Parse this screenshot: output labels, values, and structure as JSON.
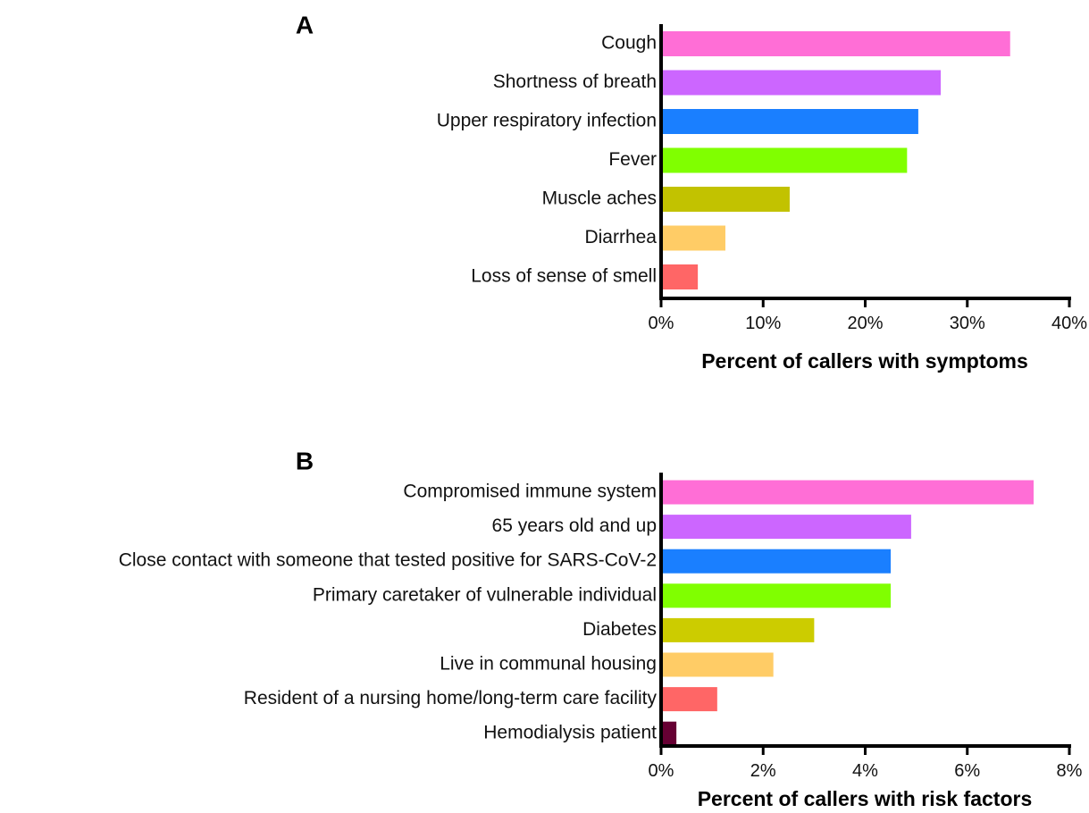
{
  "chart_data": [
    {
      "type": "bar",
      "orientation": "horizontal",
      "panel_label": "A",
      "xlabel": "Percent of callers with symptoms",
      "ylabel": "",
      "categories": [
        "Cough",
        "Shortness of breath",
        "Upper respiratory infection",
        "Fever",
        "Muscle aches",
        "Diarrhea",
        "Loss of sense of smell"
      ],
      "values": [
        34.2,
        27.4,
        25.2,
        24.1,
        12.6,
        6.3,
        3.6
      ],
      "xlim": [
        0,
        40
      ],
      "xticks": [
        0,
        10,
        20,
        30,
        40
      ],
      "xtick_labels": [
        "0%",
        "10%",
        "20%",
        "30%",
        "40%"
      ],
      "colors": [
        "#ff6ed6",
        "#cc66ff",
        "#1a7fff",
        "#80ff00",
        "#c2c200",
        "#ffcc66",
        "#ff6666"
      ],
      "grid": false
    },
    {
      "type": "bar",
      "orientation": "horizontal",
      "panel_label": "B",
      "xlabel": "Percent of callers with risk factors",
      "ylabel": "",
      "categories": [
        "Compromised immune system",
        "65 years old and up",
        "Close contact with someone that tested positive for SARS-CoV-2",
        "Primary caretaker of vulnerable individual",
        "Diabetes",
        "Live in communal housing",
        "Resident of a nursing home/long-term care facility",
        "Hemodialysis patient"
      ],
      "values": [
        7.3,
        4.9,
        4.5,
        4.5,
        3.0,
        2.2,
        1.1,
        0.3
      ],
      "xlim": [
        0,
        8
      ],
      "xticks": [
        0,
        2,
        4,
        6,
        8
      ],
      "xtick_labels": [
        "0%",
        "2%",
        "4%",
        "6%",
        "8%"
      ],
      "colors": [
        "#ff6ed6",
        "#cc66ff",
        "#1a7fff",
        "#80ff00",
        "#cccc00",
        "#ffcc66",
        "#ff6666",
        "#660033"
      ],
      "grid": false
    }
  ]
}
